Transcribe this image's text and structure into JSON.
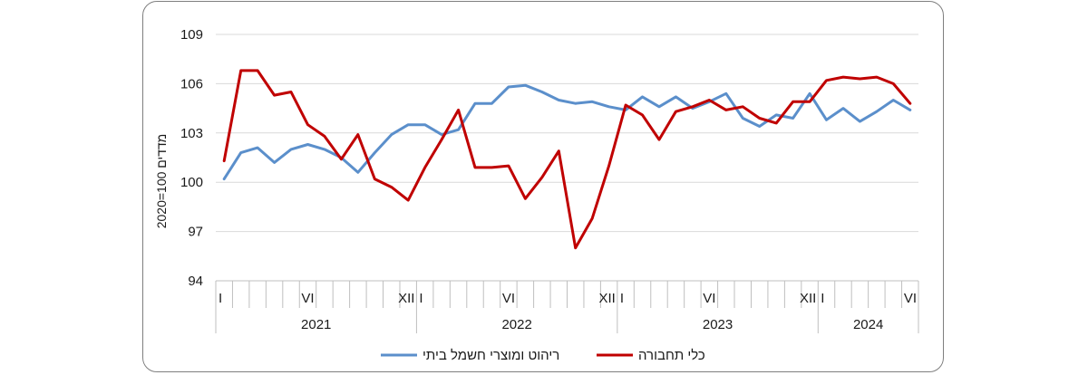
{
  "chart_data": {
    "type": "line",
    "ylabel": "2020=100  מדדים",
    "ylim": [
      94,
      109
    ],
    "yticks": [
      94,
      97,
      100,
      103,
      106,
      109
    ],
    "grid": true,
    "legend_position": "bottom",
    "month_ticks": [
      "I",
      "VI",
      "XII",
      "I",
      "VI",
      "XII",
      "I",
      "VI",
      "XII",
      "I",
      "VI"
    ],
    "years": [
      "2021",
      "2022",
      "2023",
      "2024"
    ],
    "series": [
      {
        "name": "ריהוט ומוצרי חשמל ביתי",
        "color": "#5b8fcb",
        "values": [
          100.2,
          101.8,
          102.1,
          101.2,
          102.0,
          102.3,
          102.0,
          101.5,
          100.6,
          101.8,
          102.9,
          103.5,
          103.5,
          102.9,
          103.2,
          104.8,
          104.8,
          105.8,
          105.9,
          105.5,
          105.0,
          104.8,
          104.9,
          104.6,
          104.4,
          105.2,
          104.6,
          105.2,
          104.5,
          104.9,
          105.4,
          103.9,
          103.4,
          104.1,
          103.9,
          105.4,
          103.8,
          104.5,
          103.7,
          104.3,
          105.0,
          104.4
        ]
      },
      {
        "name": "כלי תחבורה",
        "color": "#c00000",
        "values": [
          101.3,
          106.8,
          106.8,
          105.3,
          105.5,
          103.5,
          102.8,
          101.4,
          102.9,
          100.2,
          99.7,
          98.9,
          100.9,
          102.6,
          104.4,
          100.9,
          100.9,
          101.0,
          99.0,
          100.3,
          101.9,
          96.0,
          97.8,
          101.0,
          104.7,
          104.1,
          102.6,
          104.3,
          104.6,
          105.0,
          104.4,
          104.6,
          103.9,
          103.6,
          104.9,
          104.9,
          106.2,
          106.4,
          106.3,
          106.4,
          106.0,
          104.8
        ]
      }
    ]
  }
}
